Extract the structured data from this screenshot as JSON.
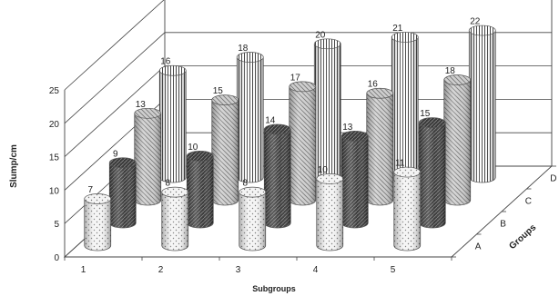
{
  "chart_data": {
    "type": "bar",
    "style": "3d-cylinder",
    "xlabel": "Subgroups",
    "ylabel": "Slump/cm",
    "zlabel": "Groups",
    "categories": [
      "1",
      "2",
      "3",
      "4",
      "5"
    ],
    "groups": [
      "A",
      "B",
      "C",
      "D"
    ],
    "ylim": [
      0,
      25
    ],
    "yticks": [
      "0",
      "5",
      "10",
      "15",
      "20",
      "25"
    ],
    "grid": true,
    "series": [
      {
        "name": "A",
        "values": [
          7,
          8,
          8,
          10,
          11
        ]
      },
      {
        "name": "B",
        "values": [
          9,
          10,
          14,
          13,
          15
        ]
      },
      {
        "name": "C",
        "values": [
          13,
          15,
          17,
          16,
          18
        ]
      },
      {
        "name": "D",
        "values": [
          16,
          18,
          20,
          21,
          22
        ]
      }
    ],
    "data_labels": {
      "A": [
        "7",
        "8",
        "8",
        "10",
        "11"
      ],
      "B": [
        "9",
        "10",
        "14",
        "13",
        "15"
      ],
      "C": [
        "13",
        "15",
        "17",
        "16",
        "18"
      ],
      "D": [
        "16",
        "18",
        "20",
        "21",
        "22"
      ]
    }
  }
}
